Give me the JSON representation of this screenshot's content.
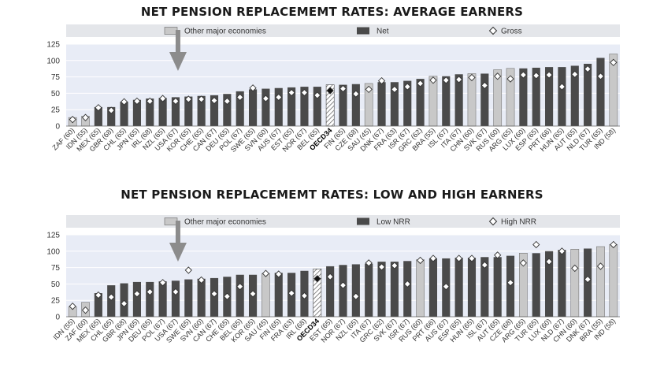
{
  "colors": {
    "plot_bg": "#e8ecf6",
    "legend_bg": "#e4e6ea",
    "grid": "#ffffff",
    "bar_dark": "#4a4a4a",
    "bar_light": "#c8c8c8",
    "marker_fill": "#ffffff",
    "marker_stroke": "#333333",
    "arrow": "#8c8c8c"
  },
  "chart_data": [
    {
      "type": "bar",
      "title": "NET PENSION REPLACEMEMT RATES: AVERAGE EARNERS",
      "legend": {
        "other": "Other major economies",
        "bar": "Net",
        "marker": "Gross"
      },
      "yticks": [
        "0",
        "25",
        "50",
        "75",
        "100",
        "125"
      ],
      "ylim": [
        0,
        125
      ],
      "grid": true,
      "categories": [
        "ZAF (60)",
        "IDN (55)",
        "MEX (65)",
        "GBR (68)",
        "CHL (65)",
        "JPN (65)",
        "IRL (68)",
        "NZL (65)",
        "USA (67)",
        "KOR (65)",
        "CHE (65)",
        "CAN (67)",
        "DEU (65)",
        "POL (67)",
        "SWE (65)",
        "SVN (60)",
        "AUS (67)",
        "EST (65)",
        "NOR (67)",
        "BEL (65)",
        "OECD34",
        "FIN (65)",
        "CZE (68)",
        "SAU (45)",
        "DNK (67)",
        "FRA (63)",
        "ISR (67)",
        "GRC (62)",
        "BRA (55)",
        "ISL (67)",
        "ITA (67)",
        "CHN (60)",
        "SVK (67)",
        "RUS (60)",
        "ARG (65)",
        "LUX (60)",
        "ESP (65)",
        "PRT (66)",
        "HUN (65)",
        "AUT (65)",
        "NLD (67)",
        "TUR (65)",
        "IND (58)"
      ],
      "bar_kind": [
        "other",
        "other",
        "oecd",
        "oecd",
        "oecd",
        "oecd",
        "oecd",
        "oecd",
        "oecd",
        "oecd",
        "oecd",
        "oecd",
        "oecd",
        "oecd",
        "oecd",
        "oecd",
        "oecd",
        "oecd",
        "oecd",
        "oecd",
        "avg",
        "oecd",
        "oecd",
        "other",
        "oecd",
        "oecd",
        "oecd",
        "oecd",
        "other",
        "oecd",
        "oecd",
        "other",
        "oecd",
        "other",
        "other",
        "oecd",
        "oecd",
        "oecd",
        "oecd",
        "oecd",
        "oecd",
        "oecd",
        "other"
      ],
      "series": [
        {
          "name": "Net",
          "values": [
            13,
            15,
            29,
            29,
            37,
            40,
            42,
            43,
            44,
            45,
            46,
            47,
            49,
            53,
            56,
            57,
            58,
            59,
            60,
            60,
            63,
            63,
            64,
            65,
            67,
            67,
            69,
            72,
            76,
            76,
            79,
            80,
            80,
            86,
            88,
            88,
            89,
            90,
            90,
            92,
            95,
            104,
            110
          ]
        },
        {
          "name": "Gross",
          "values": [
            10,
            13,
            28,
            24,
            37,
            38,
            38,
            42,
            38,
            41,
            41,
            39,
            38,
            44,
            58,
            42,
            44,
            51,
            51,
            47,
            54,
            57,
            49,
            56,
            69,
            56,
            60,
            65,
            70,
            70,
            71,
            74,
            62,
            76,
            72,
            78,
            77,
            78,
            60,
            79,
            87,
            76,
            97
          ]
        }
      ],
      "annotation": {
        "arrow_at_index": 8
      }
    },
    {
      "type": "bar",
      "title": "NET PENSION REPLACEMEMT RATES: LOW AND HIGH EARNERS",
      "legend": {
        "other": "Other major economies",
        "bar": "Low NRR",
        "marker": "High NRR"
      },
      "yticks": [
        "0",
        "25",
        "50",
        "75",
        "100",
        "125"
      ],
      "ylim": [
        0,
        125
      ],
      "grid": true,
      "categories": [
        "IDN (55)",
        "ZAF (60)",
        "MEX (65)",
        "CHL (65)",
        "GBR (68)",
        "JPN (65)",
        "DEU (65)",
        "POL (67)",
        "USA (67)",
        "SWE (65)",
        "SVN (60)",
        "CAN (67)",
        "CHE (65)",
        "BEL (65)",
        "KOR (65)",
        "SAU (45)",
        "FIN (65)",
        "FRA (63)",
        "IRL (68)",
        "OECD34",
        "EST (65)",
        "NOR (67)",
        "NZL (65)",
        "ITA (67)",
        "GRC (62)",
        "SVK (67)",
        "ISR (67)",
        "RUS (60)",
        "PRT (66)",
        "AUS (67)",
        "ESP (65)",
        "HUN (65)",
        "ISL (67)",
        "AUT (65)",
        "CZE (68)",
        "ARG (65)",
        "TUR (65)",
        "LUX (60)",
        "NLD (67)",
        "CHN (60)",
        "DNK (67)",
        "BRA (55)",
        "IND (58)"
      ],
      "bar_kind": [
        "other",
        "other",
        "oecd",
        "oecd",
        "oecd",
        "oecd",
        "oecd",
        "oecd",
        "oecd",
        "oecd",
        "oecd",
        "oecd",
        "oecd",
        "oecd",
        "oecd",
        "other",
        "oecd",
        "oecd",
        "oecd",
        "avg",
        "oecd",
        "oecd",
        "oecd",
        "oecd",
        "oecd",
        "oecd",
        "oecd",
        "other",
        "oecd",
        "oecd",
        "oecd",
        "oecd",
        "oecd",
        "oecd",
        "oecd",
        "other",
        "oecd",
        "oecd",
        "oecd",
        "other",
        "oecd",
        "other",
        "other"
      ],
      "series": [
        {
          "name": "Low NRR",
          "values": [
            15,
            22,
            36,
            48,
            51,
            53,
            53,
            54,
            55,
            57,
            58,
            59,
            61,
            64,
            64,
            66,
            67,
            67,
            70,
            73,
            77,
            79,
            80,
            81,
            84,
            84,
            85,
            87,
            89,
            89,
            90,
            90,
            91,
            91,
            93,
            97,
            97,
            100,
            102,
            103,
            104,
            107,
            110
          ]
        },
        {
          "name": "High NRR",
          "values": [
            16,
            10,
            33,
            30,
            20,
            35,
            38,
            52,
            38,
            71,
            56,
            35,
            31,
            46,
            35,
            66,
            65,
            36,
            32,
            58,
            61,
            48,
            31,
            82,
            76,
            78,
            50,
            86,
            89,
            46,
            89,
            89,
            79,
            94,
            52,
            82,
            110,
            84,
            100,
            74,
            57,
            77,
            110
          ]
        }
      ],
      "annotation": {
        "arrow_at_index": 8
      }
    }
  ]
}
